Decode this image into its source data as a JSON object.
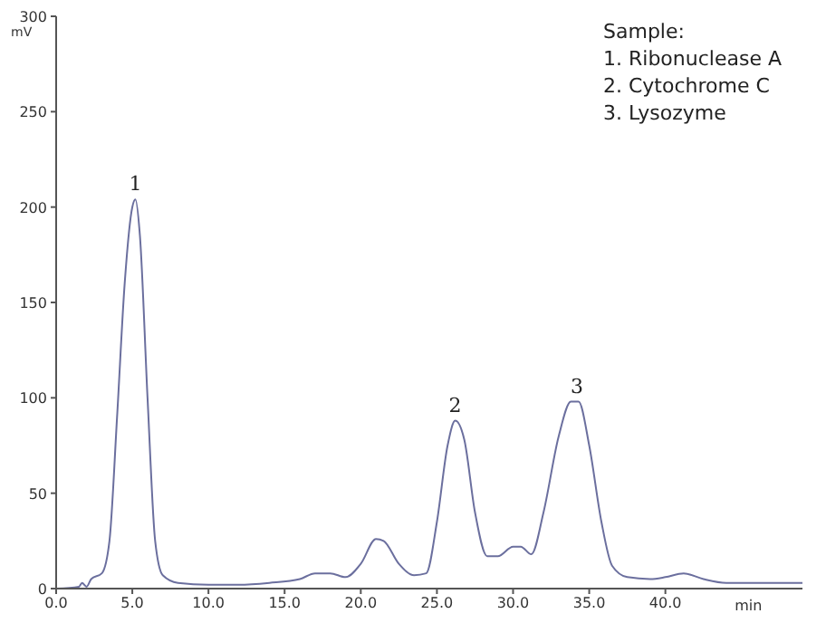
{
  "chart_data": {
    "type": "line",
    "xlabel": "min",
    "ylabel": "mV",
    "color": "#6b6f9e",
    "marker": "none",
    "line_style": "solid",
    "grid": false,
    "legend": false,
    "xlim": [
      0,
      49
    ],
    "ylim": [
      0,
      300
    ],
    "xticks": [
      {
        "value": 0,
        "label": "0.0"
      },
      {
        "value": 5,
        "label": "5.0"
      },
      {
        "value": 10,
        "label": "10.0"
      },
      {
        "value": 15,
        "label": "15.0"
      },
      {
        "value": 20,
        "label": "20.0"
      },
      {
        "value": 25,
        "label": "25.0"
      },
      {
        "value": 30,
        "label": "30.0"
      },
      {
        "value": 35,
        "label": "35.0"
      },
      {
        "value": 40,
        "label": "40.0"
      }
    ],
    "yticks": [
      0,
      50,
      100,
      150,
      200,
      250,
      300
    ],
    "x": [
      0,
      1.5,
      1.7,
      2,
      2.3,
      3,
      3.5,
      4,
      4.5,
      5,
      5.2,
      5.5,
      6,
      6.5,
      7,
      8,
      10,
      12,
      14,
      16,
      17,
      18,
      19,
      20,
      21,
      21.5,
      22.5,
      23.5,
      24.3,
      25,
      25.7,
      26.2,
      26.8,
      27.5,
      28.3,
      29,
      30,
      30.5,
      31.2,
      32,
      33,
      33.8,
      34.3,
      35,
      35.8,
      36.5,
      37.5,
      39,
      40,
      41.2,
      42.5,
      44,
      47,
      49
    ],
    "values": [
      0,
      1,
      3,
      1,
      5,
      8,
      25,
      90,
      160,
      200,
      204,
      185,
      100,
      25,
      7,
      3,
      2,
      2,
      3,
      5,
      8,
      8,
      6,
      13,
      26,
      25,
      13,
      7,
      8,
      35,
      75,
      88,
      78,
      40,
      17,
      17,
      22,
      22,
      18,
      40,
      80,
      98,
      98,
      75,
      35,
      12,
      6,
      5,
      6,
      8,
      5,
      3,
      3,
      3
    ],
    "annotations": [
      {
        "text": "1",
        "x": 5.2,
        "y": 204
      },
      {
        "text": "2",
        "x": 26.2,
        "y": 88
      },
      {
        "text": "3",
        "x": 34.2,
        "y": 98
      },
      "Sample:",
      "1. Ribonuclease A",
      "2. Cytochrome C",
      "3. Lysozyme"
    ]
  }
}
